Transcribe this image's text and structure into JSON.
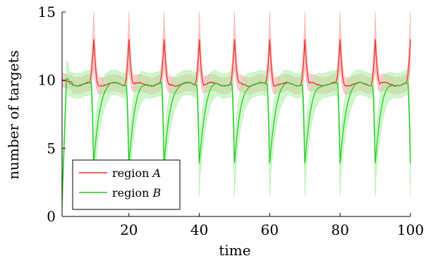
{
  "chart_data": {
    "type": "line",
    "xlabel": "time",
    "ylabel": "number of targets",
    "xlim": [
      1,
      100
    ],
    "ylim": [
      0,
      15
    ],
    "x_ticks": [
      20,
      40,
      60,
      80,
      100
    ],
    "y_ticks": [
      0,
      5,
      10,
      15
    ],
    "grid": false,
    "legend_position": "bottom-left",
    "series": [
      {
        "name": "region A",
        "legend_label": "region",
        "legend_var": "A",
        "color": "#e8332c",
        "band_color": "#f5a3a3",
        "mean_level": 9.7,
        "band_halfwidth": 0.6,
        "spike_peak": 13.0,
        "spike_band_top": 14.5,
        "spike_period": 10,
        "start_value": 10.0
      },
      {
        "name": "region B",
        "legend_label": "region",
        "legend_var": "B",
        "color": "#22cc22",
        "band_color": "#a8f0a0",
        "mean_level": 9.7,
        "band_halfwidth": 0.9,
        "dip_low": 3.9,
        "dip_band_bottom": 2.4,
        "spike_period": 10,
        "start_value": 1.0
      }
    ]
  }
}
